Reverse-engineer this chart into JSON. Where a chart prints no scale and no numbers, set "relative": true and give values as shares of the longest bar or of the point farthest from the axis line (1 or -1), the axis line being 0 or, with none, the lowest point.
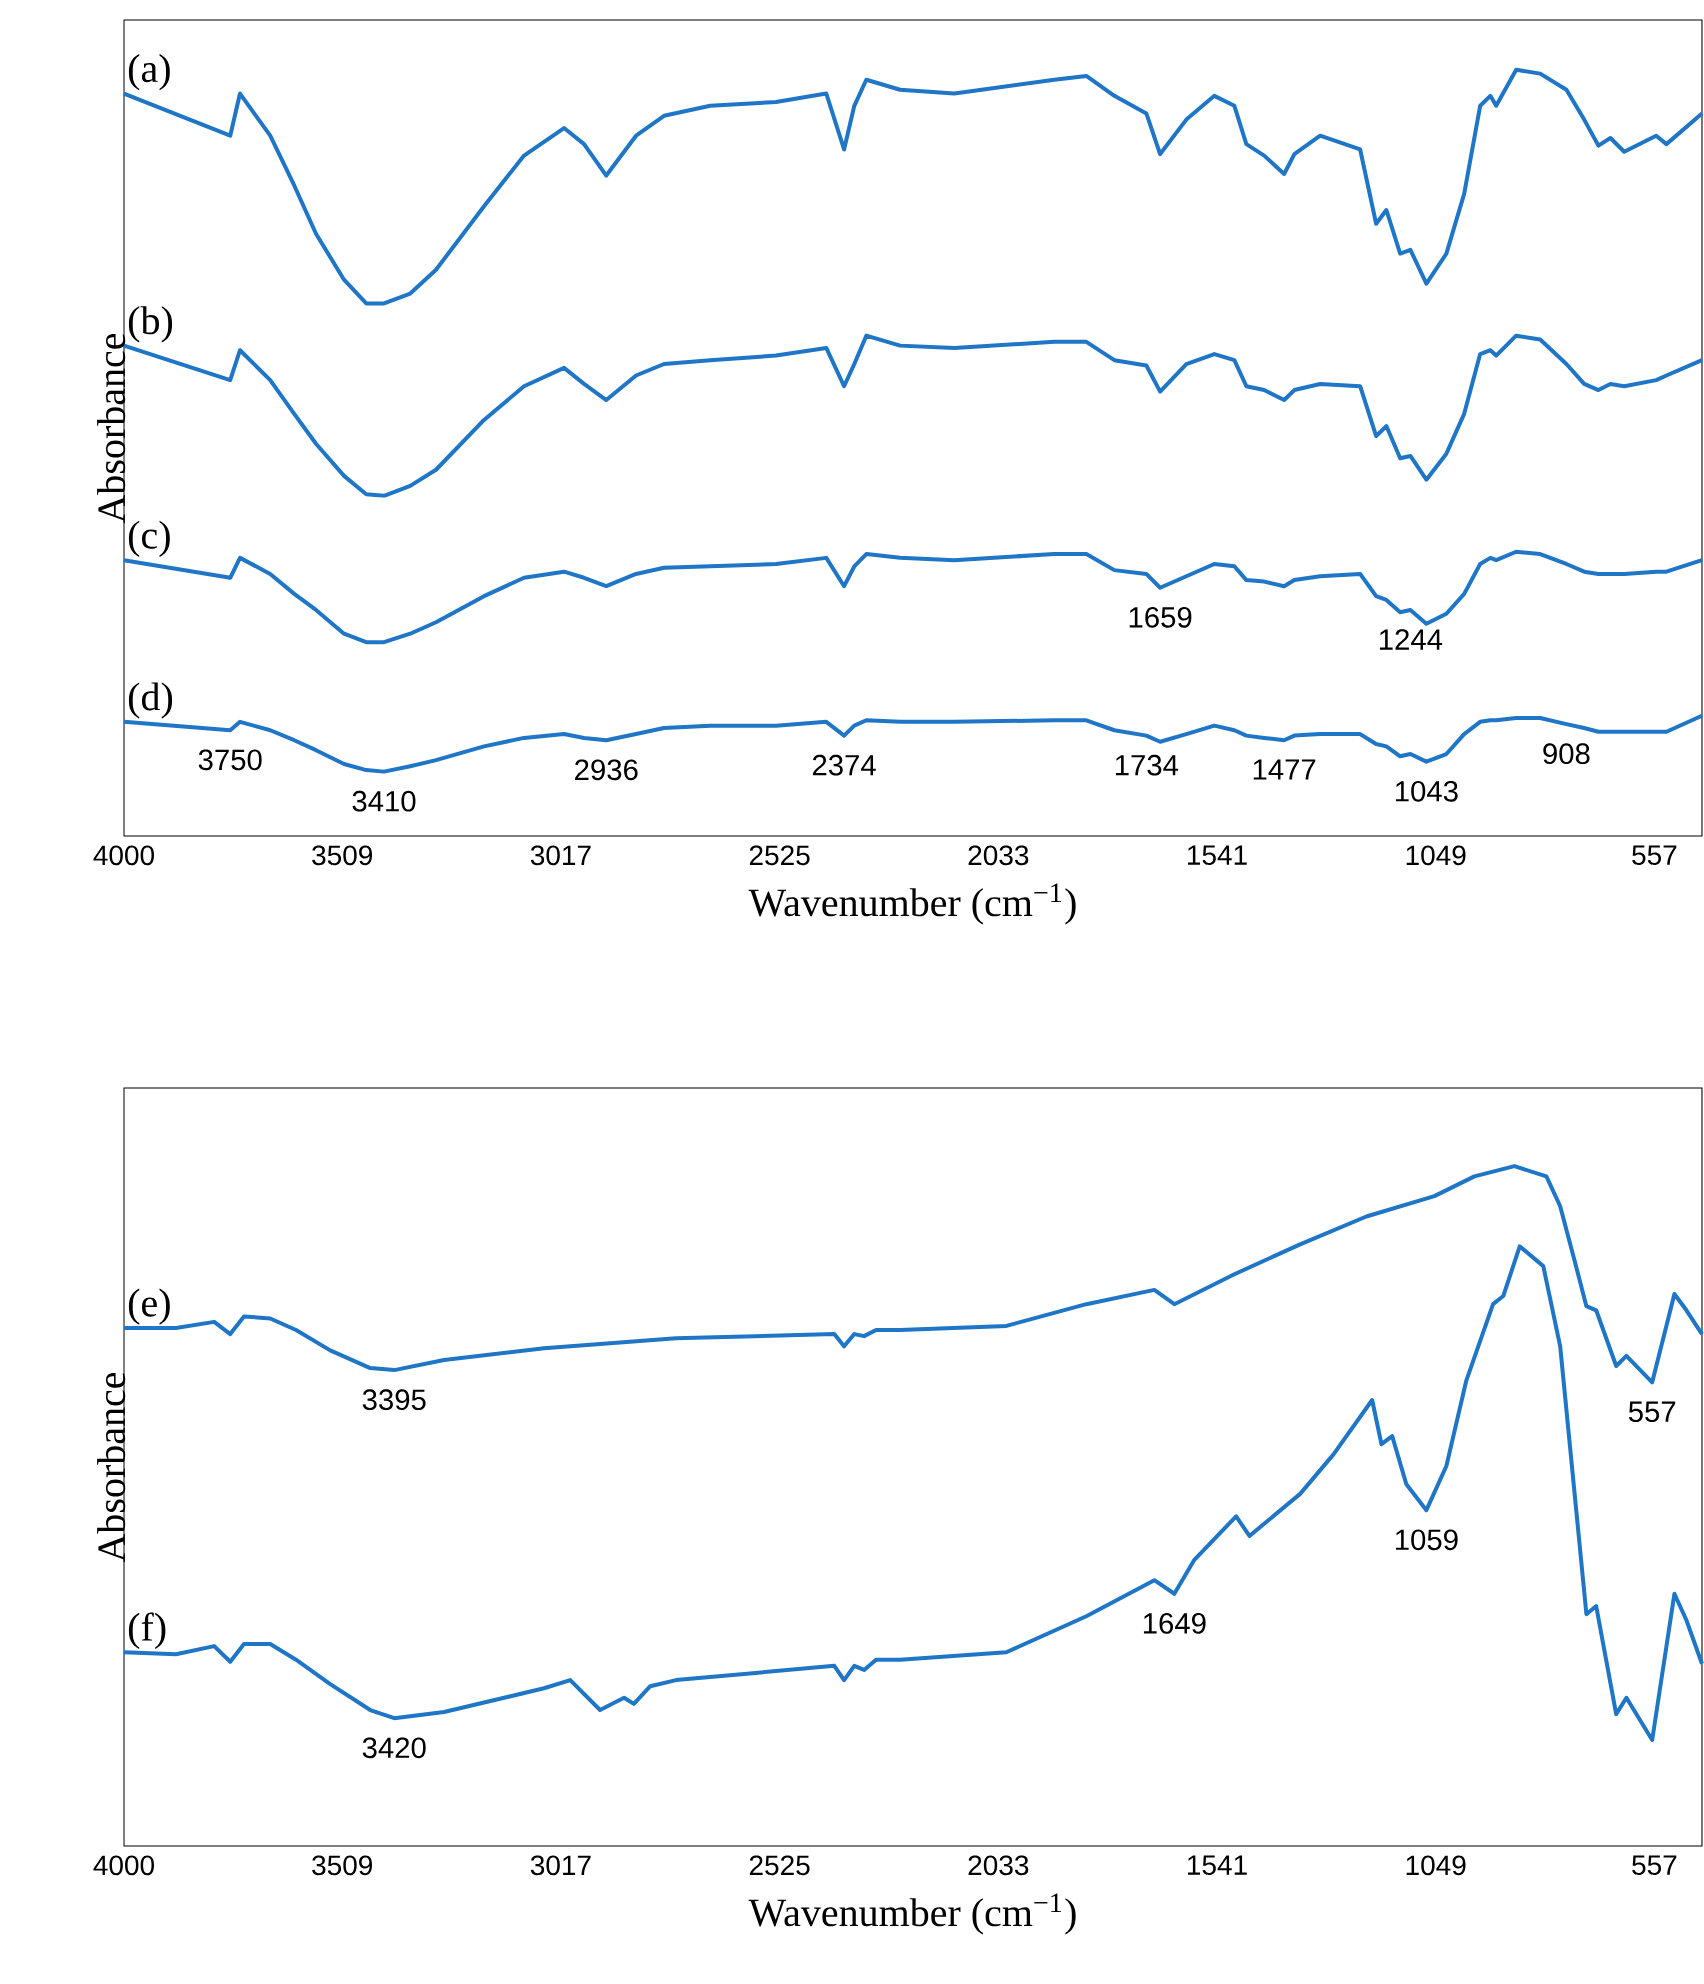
{
  "chart_data": [
    {
      "type": "line",
      "relative": true,
      "xlabel": "Wavenumber (cm$^{−1}$)",
      "ylabel": "Absorbance",
      "xlim": [
        4000,
        450
      ],
      "xticks": [
        4000,
        3509,
        3017,
        2525,
        2033,
        1541,
        1049,
        557
      ],
      "x": [
        4000,
        3761,
        3739,
        3671,
        3617,
        3568,
        3505,
        3455,
        3415,
        3356,
        3298,
        3190,
        3100,
        3010,
        2965,
        2915,
        2848,
        2785,
        2681,
        2533,
        2420,
        2380,
        2357,
        2330,
        2254,
        2132,
        1907,
        1835,
        1772,
        1700,
        1669,
        1610,
        1547,
        1502,
        1475,
        1435,
        1390,
        1367,
        1309,
        1219,
        1183,
        1160,
        1129,
        1106,
        1070,
        1025,
        985,
        949,
        926,
        913,
        868,
        814,
        755,
        715,
        683,
        656,
        625,
        553,
        530,
        450
      ],
      "series": [
        {
          "name": "(a)",
          "color": "#1f75c6",
          "values": [
            0.969,
            0.914,
            0.969,
            0.914,
            0.849,
            0.786,
            0.726,
            0.695,
            0.695,
            0.708,
            0.739,
            0.822,
            0.888,
            0.924,
            0.903,
            0.862,
            0.914,
            0.94,
            0.953,
            0.958,
            0.969,
            0.896,
            0.953,
            0.987,
            0.974,
            0.969,
            0.987,
            0.992,
            0.966,
            0.943,
            0.89,
            0.935,
            0.966,
            0.953,
            0.903,
            0.888,
            0.864,
            0.89,
            0.914,
            0.896,
            0.799,
            0.817,
            0.76,
            0.765,
            0.721,
            0.76,
            0.838,
            0.953,
            0.966,
            0.953,
            1,
            0.995,
            0.974,
            0.935,
            0.901,
            0.911,
            0.893,
            0.914,
            0.903,
            0.943
          ]
        },
        {
          "name": "(b)",
          "color": "#1f75c6",
          "values": [
            0.64,
            0.595,
            0.634,
            0.595,
            0.551,
            0.512,
            0.47,
            0.446,
            0.444,
            0.457,
            0.478,
            0.543,
            0.587,
            0.611,
            0.59,
            0.569,
            0.601,
            0.616,
            0.621,
            0.627,
            0.637,
            0.587,
            0.616,
            0.653,
            0.64,
            0.637,
            0.645,
            0.645,
            0.621,
            0.614,
            0.58,
            0.616,
            0.629,
            0.621,
            0.587,
            0.582,
            0.569,
            0.582,
            0.59,
            0.587,
            0.522,
            0.535,
            0.493,
            0.496,
            0.465,
            0.499,
            0.551,
            0.629,
            0.634,
            0.627,
            0.653,
            0.648,
            0.616,
            0.59,
            0.582,
            0.59,
            0.587,
            0.595,
            0.601,
            0.621
          ]
        },
        {
          "name": "(c)",
          "color": "#1f75c6",
          "values": [
            0.36,
            0.337,
            0.363,
            0.342,
            0.316,
            0.295,
            0.264,
            0.253,
            0.253,
            0.264,
            0.279,
            0.313,
            0.337,
            0.345,
            0.337,
            0.326,
            0.342,
            0.35,
            0.352,
            0.355,
            0.363,
            0.326,
            0.352,
            0.368,
            0.363,
            0.36,
            0.368,
            0.368,
            0.347,
            0.342,
            0.324,
            0.339,
            0.355,
            0.352,
            0.334,
            0.332,
            0.326,
            0.334,
            0.339,
            0.342,
            0.313,
            0.308,
            0.292,
            0.295,
            0.277,
            0.29,
            0.316,
            0.355,
            0.363,
            0.36,
            0.371,
            0.368,
            0.355,
            0.345,
            0.342,
            0.342,
            0.342,
            0.345,
            0.345,
            0.36
          ]
        },
        {
          "name": "(d)",
          "color": "#1f75c6",
          "values": [
            0.149,
            0.138,
            0.149,
            0.138,
            0.125,
            0.112,
            0.094,
            0.086,
            0.084,
            0.091,
            0.099,
            0.117,
            0.128,
            0.133,
            0.128,
            0.125,
            0.133,
            0.141,
            0.144,
            0.144,
            0.149,
            0.131,
            0.144,
            0.151,
            0.149,
            0.149,
            0.151,
            0.151,
            0.138,
            0.131,
            0.123,
            0.133,
            0.144,
            0.138,
            0.131,
            0.128,
            0.125,
            0.131,
            0.133,
            0.133,
            0.12,
            0.117,
            0.104,
            0.107,
            0.097,
            0.107,
            0.133,
            0.149,
            0.151,
            0.151,
            0.154,
            0.154,
            0.146,
            0.141,
            0.136,
            0.136,
            0.136,
            0.136,
            0.136,
            0.157
          ]
        }
      ],
      "annotations": [
        {
          "text": "3750",
          "x": 3761,
          "y": 0.138
        },
        {
          "text": "3410",
          "x": 3415,
          "y": 0.084
        },
        {
          "text": "2936",
          "x": 2915,
          "y": 0.125
        },
        {
          "text": "2374",
          "x": 2380,
          "y": 0.131
        },
        {
          "text": "1734",
          "x": 1700,
          "y": 0.131
        },
        {
          "text": "1477",
          "x": 1390,
          "y": 0.125
        },
        {
          "text": "1043",
          "x": 1070,
          "y": 0.097
        },
        {
          "text": "908",
          "x": 755,
          "y": 0.146
        },
        {
          "text": "1659",
          "x": 1669,
          "y": 0.324
        },
        {
          "text": "1244",
          "x": 1106,
          "y": 0.295
        }
      ]
    },
    {
      "type": "line",
      "relative": true,
      "xlabel": "Wavenumber (cm$^{−1}$)",
      "ylabel": "Absorbance",
      "xlim": [
        4000,
        450
      ],
      "xticks": [
        4000,
        3509,
        3017,
        2525,
        2033,
        1541,
        1049,
        557
      ],
      "series": [
        {
          "name": "(e)",
          "color": "#1f75c6",
          "x": [
            4000,
            3883,
            3797,
            3761,
            3730,
            3671,
            3613,
            3536,
            3446,
            3392,
            3280,
            3055,
            2758,
            2402,
            2380,
            2357,
            2335,
            2308,
            2254,
            2015,
            1835,
            1682,
            1637,
            1502,
            1354,
            1205,
            1052,
            962,
            872,
            800,
            769,
            737,
            710,
            688,
            643,
            620,
            562,
            512,
            485,
            450
          ],
          "values": [
            0.762,
            0.762,
            0.771,
            0.753,
            0.779,
            0.776,
            0.759,
            0.729,
            0.703,
            0.7,
            0.715,
            0.732,
            0.747,
            0.753,
            0.735,
            0.753,
            0.75,
            0.759,
            0.759,
            0.765,
            0.797,
            0.818,
            0.797,
            0.841,
            0.885,
            0.926,
            0.956,
            0.985,
            1,
            0.985,
            0.941,
            0.862,
            0.794,
            0.788,
            0.706,
            0.721,
            0.682,
            0.812,
            0.788,
            0.753
          ]
        },
        {
          "name": "(f)",
          "color": "#1f75c6",
          "x": [
            4000,
            3883,
            3797,
            3761,
            3730,
            3671,
            3613,
            3536,
            3446,
            3392,
            3280,
            3055,
            2996,
            2929,
            2875,
            2853,
            2816,
            2758,
            2402,
            2380,
            2357,
            2335,
            2308,
            2254,
            2015,
            1835,
            1682,
            1637,
            1592,
            1498,
            1468,
            1354,
            1279,
            1192,
            1171,
            1147,
            1115,
            1070,
            1025,
            980,
            920,
            897,
            860,
            807,
            769,
            732,
            710,
            688,
            643,
            620,
            562,
            512,
            485,
            450
          ],
          "values": [
            0.285,
            0.282,
            0.294,
            0.271,
            0.297,
            0.297,
            0.274,
            0.238,
            0.2,
            0.188,
            0.197,
            0.232,
            0.244,
            0.2,
            0.218,
            0.209,
            0.235,
            0.244,
            0.265,
            0.244,
            0.265,
            0.259,
            0.274,
            0.274,
            0.285,
            0.338,
            0.391,
            0.371,
            0.421,
            0.485,
            0.456,
            0.518,
            0.576,
            0.656,
            0.591,
            0.603,
            0.532,
            0.494,
            0.559,
            0.685,
            0.797,
            0.809,
            0.882,
            0.853,
            0.735,
            0.488,
            0.341,
            0.353,
            0.194,
            0.218,
            0.156,
            0.371,
            0.332,
            0.268
          ]
        }
      ],
      "annotations": [
        {
          "text": "3395",
          "x": 3392,
          "y": 0.7
        },
        {
          "text": "557",
          "x": 562,
          "y": 0.682
        },
        {
          "text": "1059",
          "x": 1070,
          "y": 0.494
        },
        {
          "text": "1649",
          "x": 1637,
          "y": 0.371
        },
        {
          "text": "3420",
          "x": 3392,
          "y": 0.188
        }
      ]
    }
  ]
}
